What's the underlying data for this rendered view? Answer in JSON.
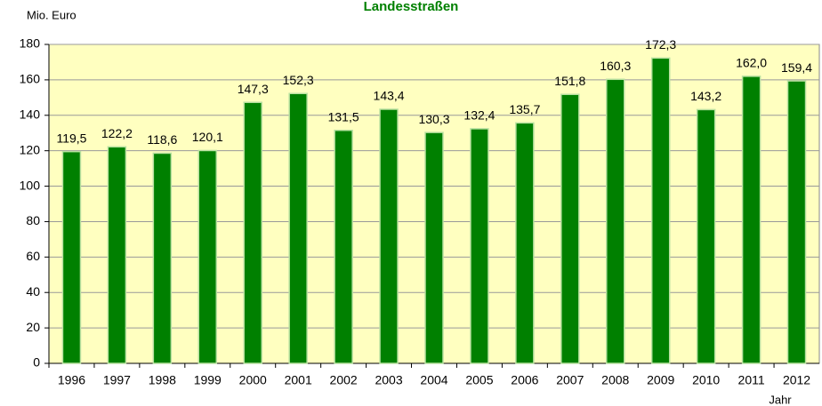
{
  "chart_data": {
    "type": "bar",
    "title": "Landesstraßen",
    "y_label": "Mio. Euro",
    "x_label": "Jahr",
    "categories": [
      "1996",
      "1997",
      "1998",
      "1999",
      "2000",
      "2001",
      "2002",
      "2003",
      "2004",
      "2005",
      "2006",
      "2007",
      "2008",
      "2009",
      "2010",
      "2011",
      "2012"
    ],
    "values": [
      119.5,
      122.2,
      118.6,
      120.1,
      147.3,
      152.3,
      131.5,
      143.4,
      130.3,
      132.4,
      135.7,
      151.8,
      160.3,
      172.3,
      143.2,
      162.0,
      159.4
    ],
    "value_labels": [
      "119,5",
      "122,2",
      "118,6",
      "120,1",
      "147,3",
      "152,3",
      "131,5",
      "143,4",
      "130,3",
      "132,4",
      "135,7",
      "151,8",
      "160,3",
      "172,3",
      "143,2",
      "162,0",
      "159,4"
    ],
    "color": "#008000",
    "plot_background": "#ffffc0",
    "ylim": [
      0,
      180
    ],
    "yticks": [
      0,
      20,
      40,
      60,
      80,
      100,
      120,
      140,
      160,
      180
    ],
    "grid": true
  }
}
